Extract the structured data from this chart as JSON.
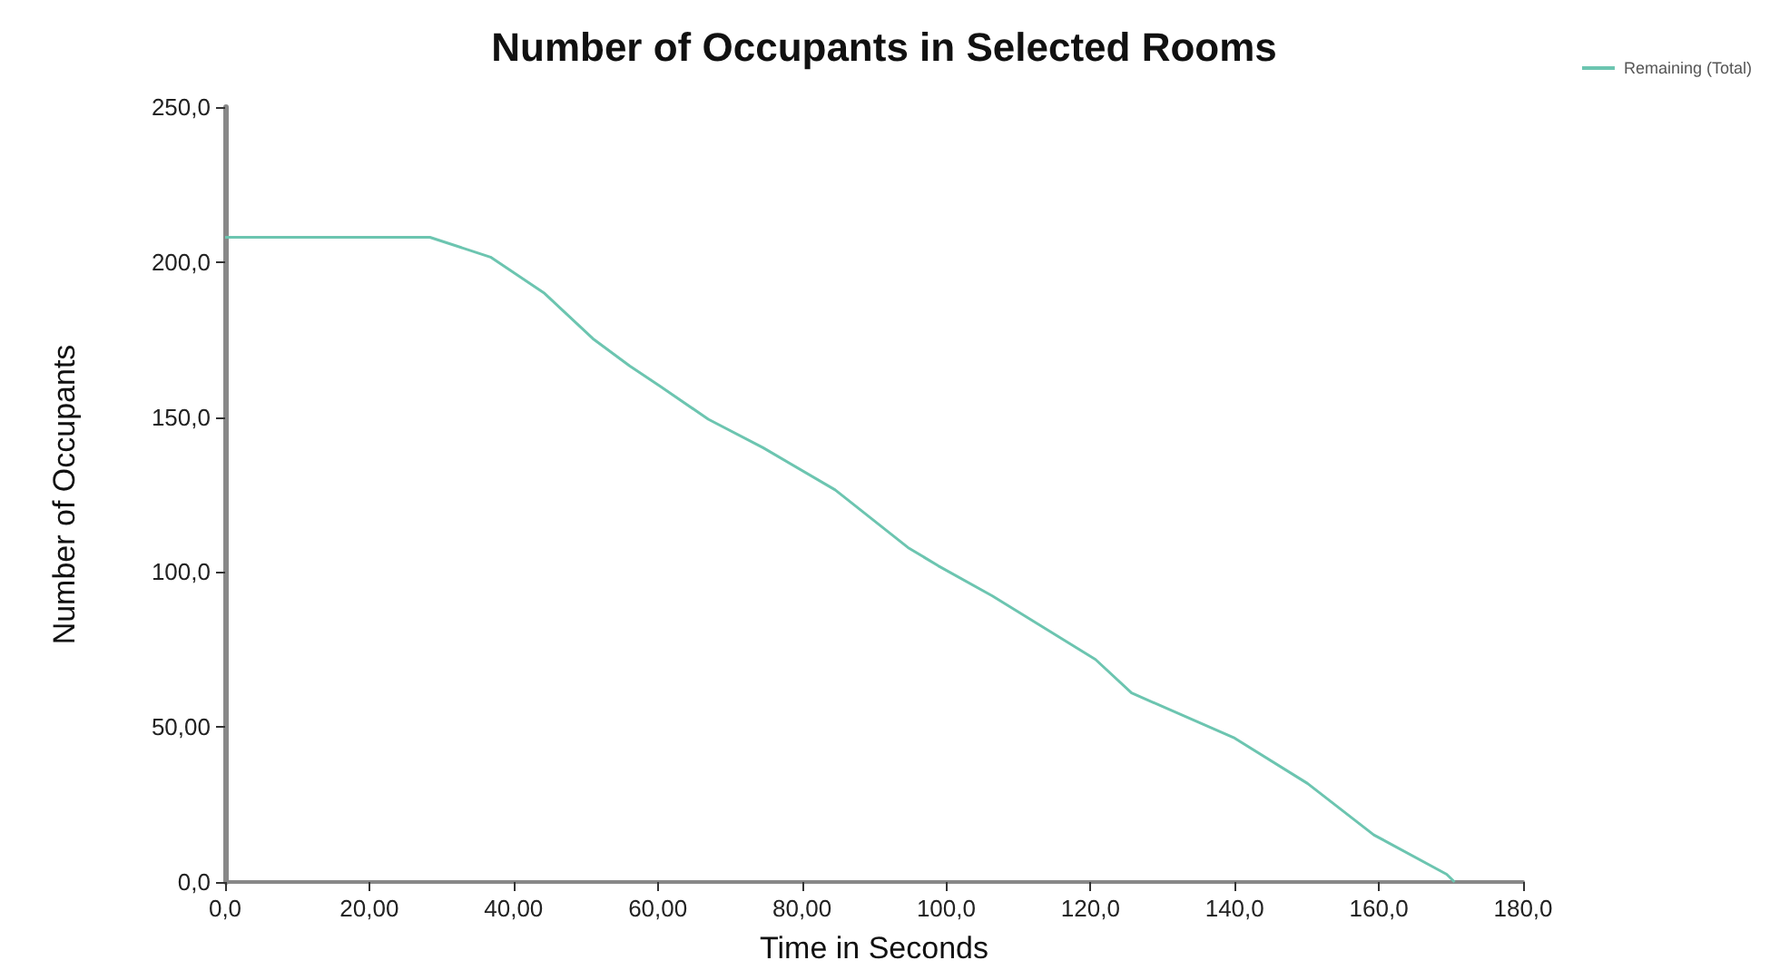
{
  "chart_data": {
    "type": "line",
    "title": "Number of Occupants in Selected Rooms",
    "xlabel": "Time in Seconds",
    "ylabel": "Number of Occupants",
    "x": [
      0,
      28.4,
      36.8,
      44.3,
      51.0,
      56.1,
      60.3,
      67.0,
      74.6,
      84.6,
      94.7,
      98.9,
      106.4,
      120.7,
      125.7,
      140.0,
      150.1,
      159.3,
      169.4,
      170.5
    ],
    "series": [
      {
        "name": "Remaining (Total)",
        "color": "#6cc5b0",
        "values": [
          208,
          208,
          201.6,
          189.9,
          175.3,
          166.5,
          160,
          149.3,
          140.1,
          126.5,
          107.9,
          102,
          92.3,
          71.8,
          61,
          46.4,
          31.8,
          15.2,
          2.5,
          0
        ]
      }
    ],
    "xlim": [
      0,
      180
    ],
    "xticks": [
      {
        "value": 0,
        "label": "0,0"
      },
      {
        "value": 20,
        "label": "20,00"
      },
      {
        "value": 40,
        "label": "40,00"
      },
      {
        "value": 60,
        "label": "60,00"
      },
      {
        "value": 80,
        "label": "80,00"
      },
      {
        "value": 100,
        "label": "100,0"
      },
      {
        "value": 120,
        "label": "120,0"
      },
      {
        "value": 140,
        "label": "140,0"
      },
      {
        "value": 160,
        "label": "160,0"
      },
      {
        "value": 180,
        "label": "180,0"
      }
    ],
    "ylim": [
      0,
      250
    ],
    "yticks": [
      {
        "value": 0,
        "label": "0,0"
      },
      {
        "value": 50,
        "label": "50,00"
      },
      {
        "value": 100,
        "label": "100,0"
      },
      {
        "value": 150,
        "label": "150,0"
      },
      {
        "value": 200,
        "label": "200,0"
      },
      {
        "value": 250,
        "label": "250,0"
      }
    ],
    "grid": false,
    "legend": "top right",
    "marker": "none",
    "line_style": "solid"
  }
}
